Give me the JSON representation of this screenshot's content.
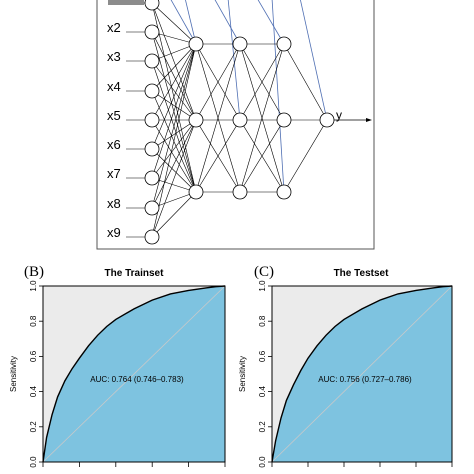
{
  "network": {
    "input_labels": [
      "x2",
      "x3",
      "x4",
      "x5",
      "x6",
      "x7",
      "x8",
      "x9"
    ],
    "output_label": "y",
    "hidden_layers": [
      3,
      3,
      3
    ],
    "colors": {
      "weights_dark": "#000000",
      "weights_blue": "#4f6fb3"
    }
  },
  "chart_data": [
    {
      "type": "line",
      "panel_letter": "(B)",
      "title": "The Trainset",
      "xlabel": "",
      "ylabel": "Sensitivity",
      "ylim": [
        0.0,
        1.0
      ],
      "y_ticks": [
        "0.0",
        "0.2",
        "0.4",
        "0.6",
        "0.8",
        "1.0"
      ],
      "annotation": "AUC: 0.764 (0.746–0.783)",
      "grid": false,
      "fill_color": "#7ec3e0",
      "background_color": "#ebebeb",
      "series": [
        {
          "x": [
            0,
            0.02,
            0.05,
            0.08,
            0.12,
            0.16,
            0.2,
            0.25,
            0.3,
            0.35,
            0.4,
            0.5,
            0.6,
            0.7,
            0.8,
            0.9,
            0.95,
            1.0
          ],
          "values": [
            0,
            0.14,
            0.27,
            0.37,
            0.46,
            0.53,
            0.59,
            0.66,
            0.72,
            0.77,
            0.81,
            0.87,
            0.92,
            0.955,
            0.975,
            0.99,
            0.996,
            1.0
          ]
        }
      ]
    },
    {
      "type": "line",
      "panel_letter": "(C)",
      "title": "The Testset",
      "xlabel": "",
      "ylabel": "Sensitivity",
      "ylim": [
        0.0,
        1.0
      ],
      "y_ticks": [
        "0.0",
        "0.2",
        "0.4",
        "0.6",
        "0.8",
        "1.0"
      ],
      "annotation": "AUC: 0.756 (0.727–0.786)",
      "grid": false,
      "fill_color": "#7ec3e0",
      "background_color": "#ebebeb",
      "series": [
        {
          "x": [
            0,
            0.02,
            0.05,
            0.08,
            0.12,
            0.16,
            0.2,
            0.25,
            0.3,
            0.35,
            0.4,
            0.5,
            0.6,
            0.7,
            0.8,
            0.9,
            0.95,
            1.0
          ],
          "values": [
            0,
            0.12,
            0.25,
            0.35,
            0.44,
            0.52,
            0.59,
            0.66,
            0.72,
            0.77,
            0.81,
            0.87,
            0.92,
            0.955,
            0.975,
            0.99,
            0.996,
            1.0
          ]
        }
      ]
    }
  ]
}
